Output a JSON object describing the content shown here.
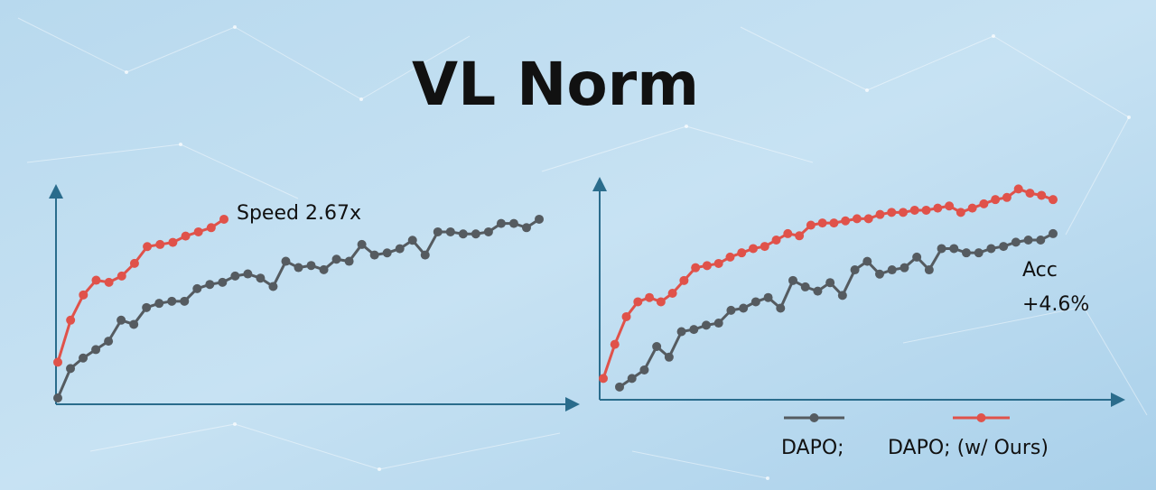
{
  "title": "VL Norm",
  "chart_data": [
    {
      "type": "line",
      "annotation": "Speed 2.67x",
      "ylim": [
        0,
        100
      ],
      "series": [
        {
          "color": "#555b60",
          "values": [
            3,
            17,
            22,
            26,
            30,
            40,
            38,
            46,
            48,
            49,
            49,
            55,
            57,
            58,
            61,
            62,
            60,
            56,
            68,
            65,
            66,
            64,
            69,
            68,
            76,
            71,
            72,
            74,
            78,
            71,
            82,
            82,
            81,
            81,
            82,
            86,
            86,
            84,
            88
          ]
        },
        {
          "color": "#e0524a",
          "values": [
            20,
            40,
            52,
            59,
            58,
            61,
            67,
            75,
            76,
            77,
            80,
            82,
            84,
            88
          ]
        }
      ]
    },
    {
      "type": "line",
      "annotation": [
        "Acc",
        "+4.6%"
      ],
      "ylim": [
        0,
        100
      ],
      "legend": "bottom",
      "series": [
        {
          "name": "DAPO;",
          "color": "#555b60",
          "values": [
            6,
            10,
            14,
            25,
            20,
            32,
            33,
            35,
            36,
            42,
            43,
            46,
            48,
            43,
            56,
            53,
            51,
            55,
            49,
            61,
            65,
            59,
            61,
            62,
            67,
            61,
            71,
            71,
            69,
            69,
            71,
            72,
            74,
            75,
            75,
            78
          ]
        },
        {
          "name": "DAPO; (w/ Ours)",
          "color": "#e0524a",
          "values": [
            10,
            26,
            39,
            46,
            48,
            46,
            50,
            56,
            62,
            63,
            64,
            67,
            69,
            71,
            72,
            75,
            78,
            77,
            82,
            83,
            83,
            84,
            85,
            85,
            87,
            88,
            88,
            89,
            89,
            90,
            91,
            88,
            90,
            92,
            94,
            95,
            99,
            97,
            96,
            94
          ]
        }
      ]
    }
  ]
}
